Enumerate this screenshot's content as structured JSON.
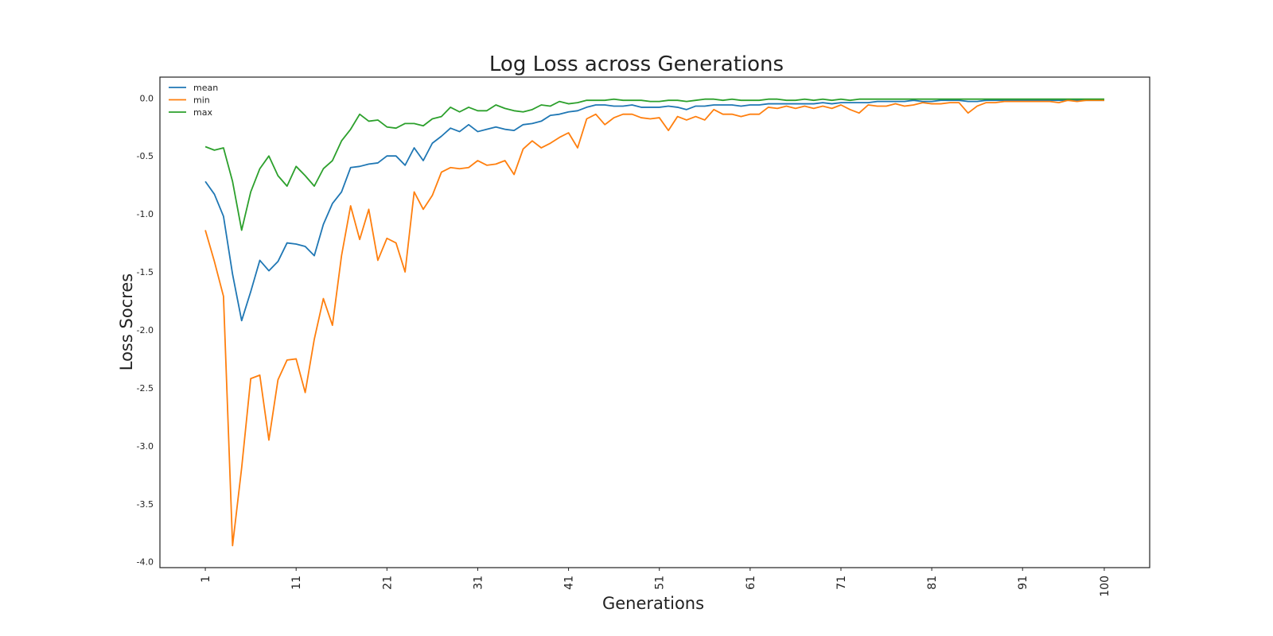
{
  "chart_data": {
    "type": "line",
    "title": "Log Loss across Generations",
    "xlabel": "Generations",
    "ylabel": "Loss Socres",
    "xlim": [
      -4,
      105
    ],
    "ylim": [
      -4.05,
      0.18
    ],
    "grid": false,
    "legend": "top-left",
    "xticks": [
      1,
      11,
      21,
      31,
      41,
      51,
      61,
      71,
      81,
      91,
      100
    ],
    "xtick_labels": [
      "1",
      "11",
      "21",
      "31",
      "41",
      "51",
      "61",
      "71",
      "81",
      "91",
      "100"
    ],
    "yticks": [
      0.0,
      -0.5,
      -1.0,
      -1.5,
      -2.0,
      -2.5,
      -3.0,
      -3.5,
      -4.0
    ],
    "ytick_labels": [
      "0.0",
      "-0.5",
      "-1.0",
      "-1.5",
      "-2.0",
      "-2.5",
      "-3.0",
      "-3.5",
      "-4.0"
    ],
    "series": [
      {
        "name": "mean",
        "color": "#1f77b4",
        "values": [
          -0.72,
          -0.83,
          -1.02,
          -1.52,
          -1.92,
          -1.67,
          -1.4,
          -1.49,
          -1.41,
          -1.25,
          -1.26,
          -1.28,
          -1.36,
          -1.09,
          -0.91,
          -0.81,
          -0.6,
          -0.59,
          -0.57,
          -0.56,
          -0.5,
          -0.5,
          -0.58,
          -0.43,
          -0.54,
          -0.39,
          -0.33,
          -0.26,
          -0.29,
          -0.23,
          -0.29,
          -0.27,
          -0.25,
          -0.27,
          -0.28,
          -0.23,
          -0.22,
          -0.2,
          -0.15,
          -0.14,
          -0.12,
          -0.11,
          -0.08,
          -0.06,
          -0.06,
          -0.07,
          -0.07,
          -0.06,
          -0.08,
          -0.08,
          -0.08,
          -0.07,
          -0.08,
          -0.1,
          -0.07,
          -0.07,
          -0.06,
          -0.06,
          -0.06,
          -0.07,
          -0.06,
          -0.06,
          -0.05,
          -0.05,
          -0.05,
          -0.05,
          -0.05,
          -0.05,
          -0.04,
          -0.05,
          -0.04,
          -0.04,
          -0.04,
          -0.04,
          -0.03,
          -0.03,
          -0.03,
          -0.03,
          -0.02,
          -0.03,
          -0.03,
          -0.02,
          -0.02,
          -0.02,
          -0.03,
          -0.03,
          -0.02,
          -0.02,
          -0.02,
          -0.02,
          -0.02,
          -0.02,
          -0.02,
          -0.02,
          -0.02,
          -0.02,
          -0.02,
          -0.02,
          -0.02,
          -0.02
        ]
      },
      {
        "name": "min",
        "color": "#ff7f0e",
        "values": [
          -1.14,
          -1.41,
          -1.71,
          -3.86,
          -3.19,
          -2.42,
          -2.39,
          -2.95,
          -2.43,
          -2.26,
          -2.25,
          -2.54,
          -2.08,
          -1.73,
          -1.96,
          -1.36,
          -0.93,
          -1.22,
          -0.96,
          -1.4,
          -1.21,
          -1.25,
          -1.5,
          -0.81,
          -0.96,
          -0.84,
          -0.64,
          -0.6,
          -0.61,
          -0.6,
          -0.54,
          -0.58,
          -0.57,
          -0.54,
          -0.66,
          -0.44,
          -0.37,
          -0.43,
          -0.39,
          -0.34,
          -0.3,
          -0.43,
          -0.18,
          -0.14,
          -0.23,
          -0.17,
          -0.14,
          -0.14,
          -0.17,
          -0.18,
          -0.17,
          -0.28,
          -0.16,
          -0.19,
          -0.16,
          -0.19,
          -0.1,
          -0.14,
          -0.14,
          -0.16,
          -0.14,
          -0.14,
          -0.08,
          -0.09,
          -0.07,
          -0.09,
          -0.07,
          -0.09,
          -0.07,
          -0.09,
          -0.06,
          -0.1,
          -0.13,
          -0.06,
          -0.07,
          -0.07,
          -0.05,
          -0.07,
          -0.06,
          -0.04,
          -0.05,
          -0.05,
          -0.04,
          -0.04,
          -0.13,
          -0.07,
          -0.04,
          -0.04,
          -0.03,
          -0.03,
          -0.03,
          -0.03,
          -0.03,
          -0.03,
          -0.04,
          -0.02,
          -0.03,
          -0.02,
          -0.02,
          -0.02
        ]
      },
      {
        "name": "max",
        "color": "#2ca02c",
        "values": [
          -0.42,
          -0.45,
          -0.43,
          -0.72,
          -1.14,
          -0.81,
          -0.61,
          -0.5,
          -0.67,
          -0.76,
          -0.59,
          -0.67,
          -0.76,
          -0.61,
          -0.54,
          -0.37,
          -0.27,
          -0.14,
          -0.2,
          -0.19,
          -0.25,
          -0.26,
          -0.22,
          -0.22,
          -0.24,
          -0.18,
          -0.16,
          -0.08,
          -0.12,
          -0.08,
          -0.11,
          -0.11,
          -0.06,
          -0.09,
          -0.11,
          -0.12,
          -0.1,
          -0.06,
          -0.07,
          -0.03,
          -0.05,
          -0.04,
          -0.02,
          -0.02,
          -0.02,
          -0.01,
          -0.02,
          -0.02,
          -0.02,
          -0.03,
          -0.03,
          -0.02,
          -0.02,
          -0.03,
          -0.02,
          -0.01,
          -0.01,
          -0.02,
          -0.01,
          -0.02,
          -0.02,
          -0.02,
          -0.01,
          -0.01,
          -0.02,
          -0.02,
          -0.01,
          -0.02,
          -0.01,
          -0.02,
          -0.01,
          -0.02,
          -0.01,
          -0.01,
          -0.01,
          -0.01,
          -0.01,
          -0.01,
          -0.01,
          -0.01,
          -0.01,
          -0.01,
          -0.01,
          -0.01,
          -0.01,
          -0.01,
          -0.01,
          -0.01,
          -0.01,
          -0.01,
          -0.01,
          -0.01,
          -0.01,
          -0.01,
          -0.01,
          -0.01,
          -0.01,
          -0.01,
          -0.01,
          -0.01
        ]
      }
    ]
  }
}
